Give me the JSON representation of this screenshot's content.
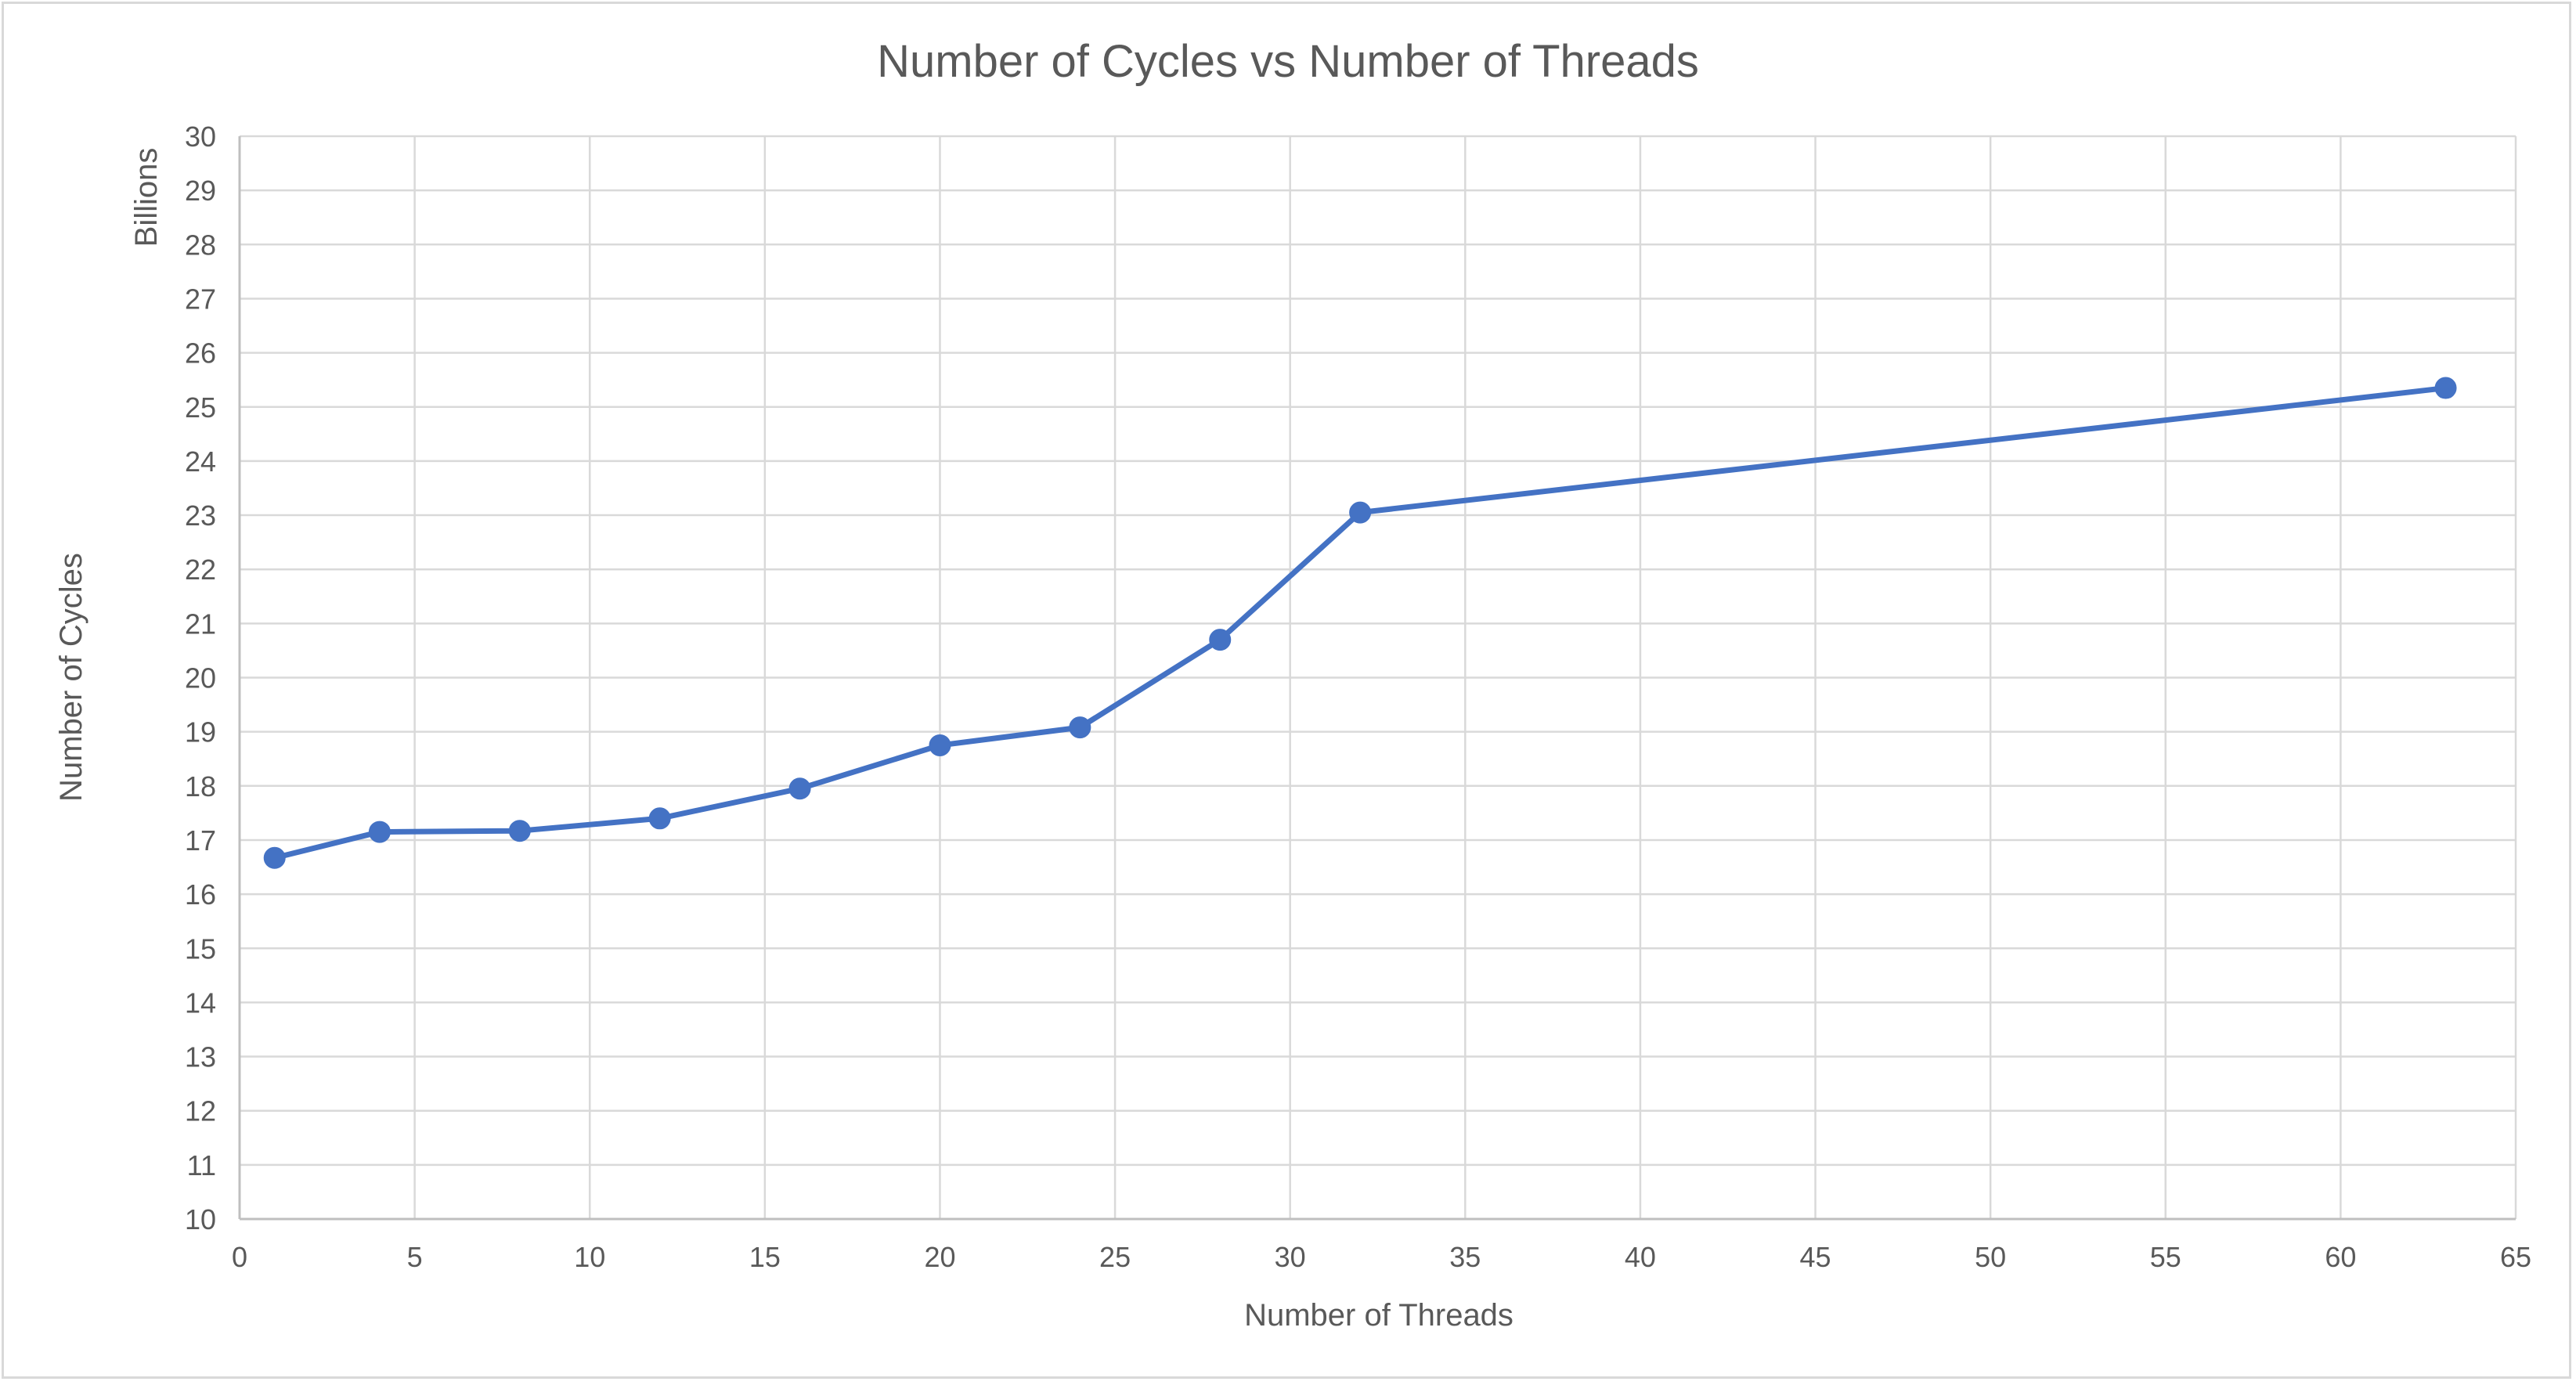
{
  "chart_data": {
    "type": "line",
    "title": "Number of Cycles vs Number of Threads",
    "xlabel": "Number of Threads",
    "ylabel": "Number of Cycles",
    "y_display_unit": "Billions",
    "xlim": [
      0,
      65
    ],
    "ylim": [
      10,
      30
    ],
    "x_ticks": [
      0,
      5,
      10,
      15,
      20,
      25,
      30,
      35,
      40,
      45,
      50,
      55,
      60,
      65
    ],
    "y_ticks": [
      10,
      11,
      12,
      13,
      14,
      15,
      16,
      17,
      18,
      19,
      20,
      21,
      22,
      23,
      24,
      25,
      26,
      27,
      28,
      29,
      30
    ],
    "grid": true,
    "legend": "none",
    "series_color": "#4472c4",
    "series": [
      {
        "x": [
          1,
          4,
          8,
          12,
          16,
          20,
          24,
          28,
          32,
          63
        ],
        "y": [
          16.67,
          17.15,
          17.17,
          17.4,
          17.95,
          18.75,
          19.08,
          20.7,
          23.05,
          25.35
        ]
      }
    ]
  }
}
